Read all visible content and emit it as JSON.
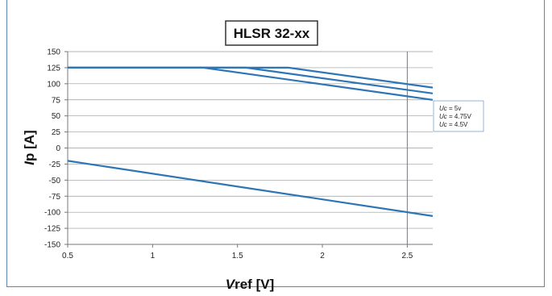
{
  "chart_data": {
    "type": "line",
    "title": "HLSR 32-xx",
    "xlabel": {
      "italic": "V",
      "rest": "ref [V]"
    },
    "ylabel": {
      "italic": "I",
      "rest": "p [A]"
    },
    "xlim": [
      0.5,
      2.65
    ],
    "ylim": [
      -150,
      150
    ],
    "x_ticks": [
      0.5,
      1,
      1.5,
      2,
      2.5
    ],
    "x_tick_labels": [
      "0.5",
      "1",
      "1.5",
      "2",
      "2.5"
    ],
    "y_ticks": [
      150,
      125,
      100,
      75,
      50,
      25,
      0,
      -25,
      -50,
      -75,
      -100,
      -125,
      -150
    ],
    "y_tick_labels": [
      "150",
      "125",
      "100",
      "75",
      "50",
      "25",
      "0",
      "-25",
      "-50",
      "-75",
      "-100",
      "-125",
      "-150"
    ],
    "grid": "horizontal",
    "vertical_marker_x": 2.5,
    "line_color": "#2e75b6",
    "legend_position": "right",
    "series": [
      {
        "points": [
          [
            0.5,
            125
          ],
          [
            1.8,
            125
          ],
          [
            2.65,
            94
          ]
        ]
      },
      {
        "points": [
          [
            0.5,
            125
          ],
          [
            1.55,
            125
          ],
          [
            2.65,
            85
          ]
        ]
      },
      {
        "points": [
          [
            0.5,
            125
          ],
          [
            1.3,
            125
          ],
          [
            2.65,
            75
          ]
        ]
      },
      {
        "points": [
          [
            0.5,
            -20
          ],
          [
            2.65,
            -106
          ]
        ]
      }
    ],
    "legend": [
      {
        "italic": "Uc",
        "rest": " = 5v"
      },
      {
        "italic": "Uc",
        "rest": " = 4.75V"
      },
      {
        "italic": "Uc",
        "rest": " = 4.5V"
      }
    ]
  }
}
